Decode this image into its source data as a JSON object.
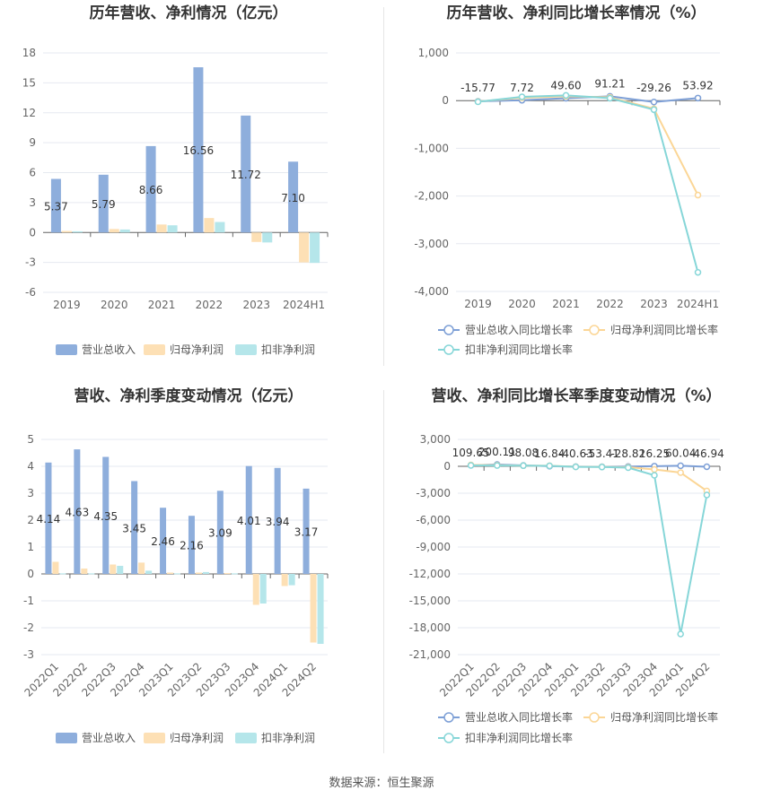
{
  "colors": {
    "revenue": "#8eaedc",
    "net_profit": "#fde0b5",
    "deducted_profit": "#b5e6ea",
    "revenue_line": "#7d9fd6",
    "net_line": "#fbd696",
    "deducted_line": "#86d6d8",
    "grid": "#e6e9f0",
    "axis": "#666666"
  },
  "source": "数据来源：恒生聚源",
  "legends": {
    "bars": [
      "营业总收入",
      "归母净利润",
      "扣非净利润"
    ],
    "lines": [
      "营业总收入同比增长率",
      "归母净利润同比增长率",
      "扣非净利润同比增长率"
    ]
  },
  "chart_data": [
    {
      "id": "annual-amount",
      "type": "bar",
      "title": "历年营收、净利情况（亿元）",
      "categories": [
        "2019",
        "2020",
        "2021",
        "2022",
        "2023",
        "2024H1"
      ],
      "ylim": [
        -6,
        18
      ],
      "yticks": [
        "-6",
        "-3",
        "0",
        "3",
        "6",
        "9",
        "12",
        "15",
        "18"
      ],
      "legend_position": "bottom",
      "series": [
        {
          "name": "营业总收入",
          "values": [
            5.37,
            5.79,
            8.66,
            16.56,
            11.72,
            7.1
          ],
          "labels": [
            "5.37",
            "5.79",
            "8.66",
            "16.56",
            "11.72",
            "7.10"
          ]
        },
        {
          "name": "归母净利润",
          "values": [
            0.15,
            0.35,
            0.8,
            1.45,
            -0.95,
            -3.0
          ]
        },
        {
          "name": "扣非净利润",
          "values": [
            0.12,
            0.3,
            0.72,
            1.05,
            -1.0,
            -3.05
          ]
        }
      ]
    },
    {
      "id": "annual-growth",
      "type": "line",
      "title": "历年营收、净利同比增长率情况（%）",
      "categories": [
        "2019",
        "2020",
        "2021",
        "2022",
        "2023",
        "2024H1"
      ],
      "ylim": [
        -4000,
        1000
      ],
      "yticks": [
        "-4,000",
        "-3,000",
        "-2,000",
        "-1,000",
        "0",
        "1,000"
      ],
      "legend_position": "bottom",
      "series": [
        {
          "name": "营业总收入同比增长率",
          "values": [
            -15.77,
            7.72,
            49.6,
            91.21,
            -29.26,
            53.92
          ],
          "labels": [
            "-15.77",
            "7.72",
            "49.60",
            "91.21",
            "-29.26",
            "53.92"
          ]
        },
        {
          "name": "归母净利润同比增长率",
          "values": [
            -20,
            60,
            90,
            70,
            -170,
            -1980
          ]
        },
        {
          "name": "扣非净利润同比增长率",
          "values": [
            -25,
            80,
            110,
            50,
            -190,
            -3600
          ]
        }
      ]
    },
    {
      "id": "quarterly-amount",
      "type": "bar",
      "title": "营收、净利季度变动情况（亿元）",
      "categories": [
        "2022Q1",
        "2022Q2",
        "2022Q3",
        "2022Q4",
        "2023Q1",
        "2023Q2",
        "2023Q3",
        "2023Q4",
        "2024Q1",
        "2024Q2"
      ],
      "ylim": [
        -3,
        5
      ],
      "yticks": [
        "-3",
        "-2",
        "-1",
        "0",
        "1",
        "2",
        "3",
        "4",
        "5"
      ],
      "legend_position": "bottom",
      "series": [
        {
          "name": "营业总收入",
          "values": [
            4.14,
            4.63,
            4.35,
            3.45,
            2.46,
            2.16,
            3.09,
            4.01,
            3.94,
            3.17
          ],
          "labels": [
            "4.14",
            "4.63",
            "4.35",
            "3.45",
            "2.46",
            "2.16",
            "3.09",
            "4.01",
            "3.94",
            "3.17"
          ]
        },
        {
          "name": "归母净利润",
          "values": [
            0.45,
            0.2,
            0.35,
            0.42,
            0.05,
            0.05,
            0.03,
            -1.15,
            -0.45,
            -2.55
          ]
        },
        {
          "name": "扣非净利润",
          "values": [
            0.02,
            0.02,
            0.3,
            0.12,
            0.02,
            0.07,
            0.02,
            -1.1,
            -0.42,
            -2.6
          ]
        }
      ]
    },
    {
      "id": "quarterly-growth",
      "type": "line",
      "title": "营收、净利同比增长率季度变动情况（%）",
      "categories": [
        "2022Q1",
        "2022Q2",
        "2022Q3",
        "2022Q4",
        "2023Q1",
        "2023Q2",
        "2023Q3",
        "2023Q4",
        "2024Q1",
        "2024Q2"
      ],
      "ylim": [
        -21000,
        3000
      ],
      "yticks": [
        "-21,000",
        "-18,000",
        "-15,000",
        "-12,000",
        "-9,000",
        "-6,000",
        "-3,000",
        "0",
        "3,000"
      ],
      "legend_position": "bottom",
      "series": [
        {
          "name": "营业总收入同比增长率",
          "values": [
            109.65,
            200.11,
            98.08,
            16.84,
            -40.63,
            -53.41,
            -28.82,
            16.25,
            60.04,
            -46.94
          ],
          "labels": [
            "109.65",
            "200.11",
            "98.08",
            "16.84",
            "-40.63",
            "-53.41",
            "-28.82",
            "16.25",
            "60.04",
            "-46.94"
          ]
        },
        {
          "name": "归母净利润同比增长率",
          "values": [
            150,
            120,
            80,
            60,
            -50,
            -60,
            -100,
            -350,
            -700,
            -2750
          ]
        },
        {
          "name": "扣非净利润同比增长率",
          "values": [
            100,
            90,
            70,
            50,
            -60,
            -80,
            -150,
            -1000,
            -18700,
            -3200
          ]
        }
      ]
    }
  ]
}
